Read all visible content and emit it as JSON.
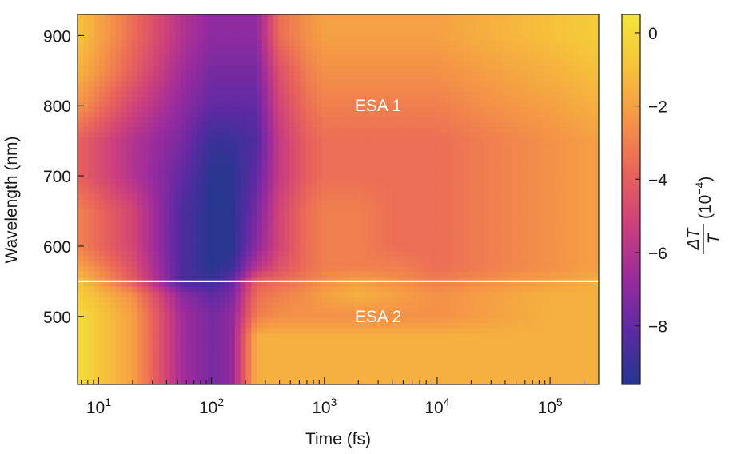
{
  "chart_data": {
    "type": "heatmap",
    "title": "",
    "xlabel": "Time (fs)",
    "ylabel": "Wavelength (nm)",
    "xscale": "log",
    "xlim": [
      6.5,
      270000
    ],
    "ylim": [
      403,
      930
    ],
    "x_ticks": [
      {
        "base": "10",
        "exp": "1",
        "value": 10
      },
      {
        "base": "10",
        "exp": "2",
        "value": 100
      },
      {
        "base": "10",
        "exp": "3",
        "value": 1000
      },
      {
        "base": "10",
        "exp": "4",
        "value": 10000
      },
      {
        "base": "10",
        "exp": "5",
        "value": 100000
      }
    ],
    "y_ticks": [
      {
        "label": "500",
        "value": 500
      },
      {
        "label": "600",
        "value": 600
      },
      {
        "label": "700",
        "value": 700
      },
      {
        "label": "800",
        "value": 800
      },
      {
        "label": "900",
        "value": 900
      }
    ],
    "divider_wavelength": 550,
    "annotations": [
      {
        "text": "ESA 1",
        "x": 3000,
        "y": 800
      },
      {
        "text": "ESA 2",
        "x": 3000,
        "y": 500
      }
    ],
    "colorbar": {
      "label_delta": "ΔT",
      "label_denominator": "T",
      "label_units_base": "(10",
      "label_units_exp": "−4",
      "label_units_close": ")",
      "range": [
        -9.6,
        0.5
      ],
      "ticks": [
        {
          "label": "0",
          "value": 0
        },
        {
          "label": "−2",
          "value": -2
        },
        {
          "label": "−4",
          "value": -4
        },
        {
          "label": "−6",
          "value": -6
        },
        {
          "label": "−8",
          "value": -8
        }
      ],
      "colormap": "plasma",
      "stops": [
        "#24378f",
        "#5b2aa3",
        "#9a2b9e",
        "#cc3f7c",
        "#e9635a",
        "#f59447",
        "#f6c23a",
        "#f2e63a"
      ]
    },
    "grid_time_fs": [
      7,
      20,
      55,
      100,
      150,
      250,
      400,
      700,
      1000,
      2000,
      4500,
      10000,
      30000,
      100000,
      270000
    ],
    "grid_wavelength_nm": [
      410,
      440,
      470,
      500,
      530,
      550,
      570,
      600,
      650,
      700,
      750,
      800,
      850,
      900,
      930
    ],
    "grid_values_1e-4": [
      [
        0.0,
        0.0,
        0.0,
        0.0,
        -0.5,
        -1.0,
        -2.0,
        -3.0,
        -3.0,
        -4.0,
        -4.0,
        -2.5,
        -1.5,
        -1.0,
        -1.0
      ],
      [
        -2.0,
        -2.0,
        -2.0,
        -2.0,
        -2.5,
        -4.0,
        -4.5,
        -5.0,
        -5.0,
        -6.0,
        -6.0,
        -5.0,
        -4.0,
        -3.5,
        -3.5
      ],
      [
        -6.5,
        -6.5,
        -6.5,
        -6.5,
        -7.0,
        -8.5,
        -8.5,
        -8.5,
        -8.5,
        -8.0,
        -7.5,
        -7.0,
        -6.5,
        -6.0,
        -6.0
      ],
      [
        -7.5,
        -7.5,
        -7.5,
        -7.5,
        -8.0,
        -9.0,
        -9.5,
        -9.5,
        -9.5,
        -9.5,
        -9.0,
        -8.0,
        -7.5,
        -7.0,
        -7.0
      ],
      [
        -7.0,
        -7.0,
        -7.0,
        -7.0,
        -7.5,
        -8.0,
        -9.0,
        -9.5,
        -9.5,
        -9.5,
        -9.0,
        -8.0,
        -7.5,
        -7.0,
        -7.0
      ],
      [
        -1.5,
        -1.5,
        -1.5,
        -3.0,
        -3.5,
        -4.0,
        -6.0,
        -7.0,
        -7.5,
        -8.0,
        -8.5,
        -8.0,
        -7.5,
        -7.0,
        -7.0
      ],
      [
        -1.5,
        -1.5,
        -1.5,
        -2.5,
        -3.0,
        -3.5,
        -4.5,
        -5.0,
        -5.0,
        -5.5,
        -5.5,
        -5.0,
        -4.5,
        -3.5,
        -3.5
      ],
      [
        -1.5,
        -1.5,
        -1.5,
        -2.5,
        -2.5,
        -3.0,
        -3.5,
        -3.5,
        -3.5,
        -4.0,
        -4.0,
        -3.5,
        -3.0,
        -2.5,
        -2.5
      ],
      [
        -1.5,
        -1.5,
        -1.5,
        -2.5,
        -2.0,
        -2.5,
        -3.0,
        -3.0,
        -3.0,
        -3.5,
        -3.5,
        -3.0,
        -2.5,
        -2.0,
        -2.0
      ],
      [
        -1.5,
        -1.5,
        -1.5,
        -2.5,
        -1.5,
        -2.0,
        -3.0,
        -3.0,
        -3.0,
        -3.5,
        -3.5,
        -3.0,
        -2.5,
        -2.0,
        -2.0
      ],
      [
        -1.5,
        -1.5,
        -1.5,
        -2.5,
        -2.0,
        -2.5,
        -3.0,
        -3.5,
        -3.5,
        -3.5,
        -3.5,
        -3.0,
        -2.5,
        -2.0,
        -2.0
      ],
      [
        -1.5,
        -1.5,
        -1.5,
        -2.5,
        -2.5,
        -3.0,
        -3.5,
        -3.5,
        -3.5,
        -3.5,
        -3.5,
        -3.0,
        -2.5,
        -2.0,
        -2.0
      ],
      [
        -1.5,
        -1.5,
        -1.5,
        -2.0,
        -2.0,
        -2.5,
        -3.0,
        -3.0,
        -3.0,
        -3.0,
        -3.0,
        -2.5,
        -2.0,
        -1.5,
        -1.5
      ],
      [
        -1.5,
        -1.5,
        -1.5,
        -1.5,
        -1.5,
        -2.0,
        -2.5,
        -2.5,
        -2.5,
        -2.5,
        -2.5,
        -2.0,
        -1.5,
        -1.0,
        -1.0
      ],
      [
        -1.5,
        -1.5,
        -1.5,
        -1.5,
        -1.5,
        -1.5,
        -2.0,
        -2.0,
        -2.0,
        -2.0,
        -2.0,
        -1.5,
        -1.0,
        -0.5,
        -0.5
      ]
    ]
  }
}
